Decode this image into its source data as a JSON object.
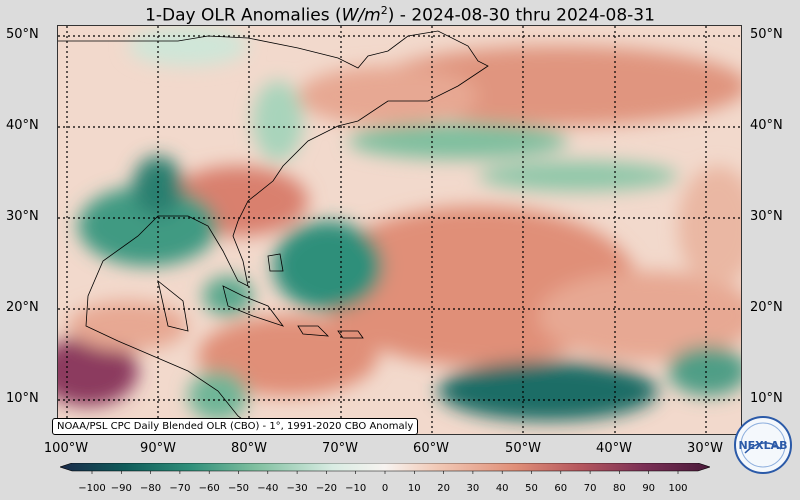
{
  "title_prefix": "1-Day OLR Anomalies (",
  "title_unit": "W/m",
  "title_sup": "2",
  "title_suffix": ") - 2024-08-30 thru 2024-08-31",
  "lat_labels": [
    "50°N",
    "40°N",
    "30°N",
    "20°N",
    "10°N"
  ],
  "lon_labels": [
    "100°W",
    "90°W",
    "80°W",
    "70°W",
    "60°W",
    "50°W",
    "40°W",
    "30°W"
  ],
  "credit": "NOAA/PSL CPC Daily Blended OLR (CBO) - 1°, 1991-2020 CBO Anomaly",
  "colorbar": {
    "ticks": [
      "−100",
      "−90",
      "−80",
      "−70",
      "−60",
      "−50",
      "−40",
      "−30",
      "−20",
      "−10",
      "0",
      "10",
      "20",
      "30",
      "40",
      "50",
      "60",
      "70",
      "80",
      "90",
      "100"
    ],
    "colors": [
      "#1a2a4a",
      "#0f5c5a",
      "#2f8f7a",
      "#7fbf9f",
      "#d9ece3",
      "#f7f3f0",
      "#f1c9b6",
      "#e08f78",
      "#b5575e",
      "#7a2f55",
      "#4a1a3a"
    ]
  },
  "logo_text": "NEXLAB",
  "colors": {
    "background": "#dcdcdc",
    "land_outline": "#000000",
    "grid": "#000000"
  }
}
